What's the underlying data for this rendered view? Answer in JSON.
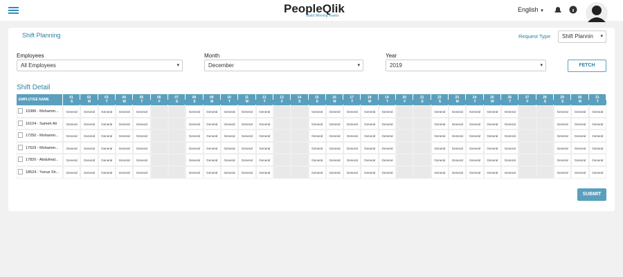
{
  "header": {
    "logo": "PeopleQlik",
    "tagline": "Build Winning Teams",
    "language": "English"
  },
  "panel": {
    "title": "Shift Planning",
    "request_type": {
      "label": "Request Type",
      "value": "Shift Plannin"
    },
    "filters": [
      {
        "label": "Employees",
        "value": "All Employees"
      },
      {
        "label": "Month",
        "value": "December"
      },
      {
        "label": "Year",
        "value": "2019"
      }
    ],
    "fetch_button": "FETCH",
    "section_title": "Shift Detail",
    "table": {
      "header": "EMPLOYEE NAME",
      "days": [
        {
          "day": "01",
          "weekday": "S"
        },
        {
          "day": "02",
          "weekday": "M"
        },
        {
          "day": "03",
          "weekday": "T"
        },
        {
          "day": "04",
          "weekday": "W"
        },
        {
          "day": "05",
          "weekday": "T"
        },
        {
          "day": "06",
          "weekday": "F"
        },
        {
          "day": "07",
          "weekday": "S"
        },
        {
          "day": "08",
          "weekday": "S"
        },
        {
          "day": "09",
          "weekday": "M"
        },
        {
          "day": "10",
          "weekday": "T"
        },
        {
          "day": "11",
          "weekday": "W"
        },
        {
          "day": "12",
          "weekday": "T"
        },
        {
          "day": "13",
          "weekday": "F"
        },
        {
          "day": "14",
          "weekday": "S"
        },
        {
          "day": "15",
          "weekday": "S"
        },
        {
          "day": "16",
          "weekday": "M"
        },
        {
          "day": "17",
          "weekday": "T"
        },
        {
          "day": "18",
          "weekday": "W"
        },
        {
          "day": "19",
          "weekday": "T"
        },
        {
          "day": "20",
          "weekday": "F"
        },
        {
          "day": "21",
          "weekday": "S"
        },
        {
          "day": "22",
          "weekday": "S"
        },
        {
          "day": "23",
          "weekday": "M"
        },
        {
          "day": "24",
          "weekday": "T"
        },
        {
          "day": "25",
          "weekday": "W"
        },
        {
          "day": "26",
          "weekday": "T"
        },
        {
          "day": "27",
          "weekday": "F"
        },
        {
          "day": "28",
          "weekday": "S"
        },
        {
          "day": "29",
          "weekday": "S"
        },
        {
          "day": "30",
          "weekday": "M"
        },
        {
          "day": "31",
          "weekday": "T"
        }
      ],
      "rows": [
        {
          "employee": "10386 - Mohamm...",
          "shifts": [
            "General",
            "General",
            "General",
            "General",
            "General",
            null,
            null,
            "General",
            "General",
            "General",
            "General",
            "General",
            null,
            null,
            "General",
            "General",
            "General",
            "General",
            "General",
            null,
            null,
            "General",
            "General",
            "General",
            "General",
            "General",
            null,
            null,
            "General",
            "General",
            "General"
          ]
        },
        {
          "employee": "16104 - Sameh Ali",
          "shifts": [
            "General",
            "General",
            "General",
            "General",
            "General",
            null,
            null,
            "General",
            "General",
            "General",
            "General",
            "General",
            null,
            null,
            "General",
            "General",
            "General",
            "General",
            "General",
            null,
            null,
            "General",
            "General",
            "General",
            "General",
            "General",
            null,
            null,
            "General",
            "General",
            "General"
          ]
        },
        {
          "employee": "17250 - Mohamm...",
          "shifts": [
            "General",
            "General",
            "General",
            "General",
            "General",
            null,
            null,
            "General",
            "General",
            "General",
            "General",
            "General",
            null,
            null,
            "General",
            "General",
            "General",
            "General",
            "General",
            null,
            null,
            "General",
            "General",
            "General",
            "General",
            "General",
            null,
            null,
            "General",
            "General",
            "General"
          ]
        },
        {
          "employee": "17529 - Mohamm...",
          "shifts": [
            "General",
            "General",
            "General",
            "General",
            "General",
            null,
            null,
            "General",
            "General",
            "General",
            "General",
            "General",
            null,
            null,
            "General",
            "General",
            "General",
            "General",
            "General",
            null,
            null,
            "General",
            "General",
            "General",
            "General",
            "General",
            null,
            null,
            "General",
            "General",
            "General"
          ]
        },
        {
          "employee": "17820 - Abdulmal...",
          "shifts": [
            "General",
            "General",
            "General",
            "General",
            "General",
            null,
            null,
            "General",
            "General",
            "General",
            "General",
            "General",
            null,
            null,
            "General",
            "General",
            "General",
            "General",
            "General",
            null,
            null,
            "General",
            "General",
            "General",
            "General",
            "General",
            null,
            null,
            "General",
            "General",
            "General"
          ]
        },
        {
          "employee": "18524 - Yunus Sh...",
          "shifts": [
            "General",
            "General",
            "General",
            "General",
            "General",
            null,
            null,
            "General",
            "General",
            "General",
            "General",
            "General",
            null,
            null,
            "General",
            "General",
            "General",
            "General",
            "General",
            null,
            null,
            "General",
            "General",
            "General",
            "General",
            "General",
            null,
            null,
            "General",
            "General",
            "General"
          ]
        }
      ]
    },
    "submit_button": "SUBMIT"
  }
}
